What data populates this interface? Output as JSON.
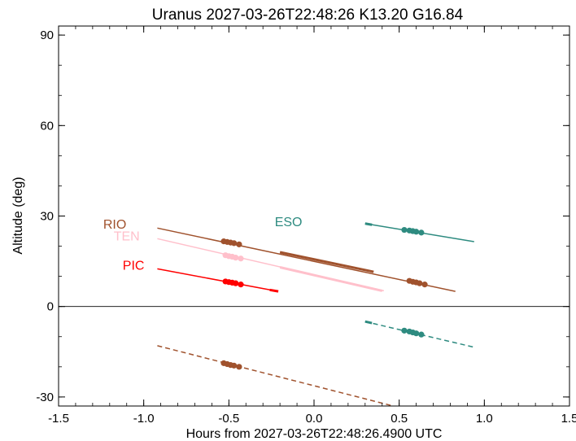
{
  "chart_data": {
    "type": "line",
    "title": "Uranus 2027-03-26T22:48:26  K13.20  G16.84",
    "xlabel": "Hours from 2027-03-26T22:48:26.4900 UTC",
    "ylabel": "Altitude (deg)",
    "xlim": [
      -1.5,
      1.5
    ],
    "ylim": [
      -33,
      93
    ],
    "xticks": [
      -1.5,
      -1.0,
      -0.5,
      0.0,
      0.5,
      1.0,
      1.5
    ],
    "xtick_labels": [
      "-1.5",
      "-1.0",
      "-0.5",
      "0.0",
      "0.5",
      "1.0",
      "1.5"
    ],
    "yticks": [
      -30,
      0,
      30,
      60,
      90
    ],
    "ytick_labels": [
      "-30",
      "0",
      "30",
      "60",
      "90"
    ],
    "zero_line": true,
    "grid": false,
    "series": [
      {
        "name": "RIO",
        "color": "#a0522d",
        "label_pos": [
          -1.17,
          27.5
        ],
        "segments": [
          {
            "x": [
              -0.92,
              0.83
            ],
            "y": [
              26.0,
              5.0
            ],
            "style": "solid",
            "width": 1.5
          },
          {
            "x": [
              -0.2,
              0.35
            ],
            "y": [
              18.0,
              11.5
            ],
            "style": "solid",
            "width": 3
          },
          {
            "x": [
              -0.92,
              0.5
            ],
            "y": [
              -13.0,
              -33.5
            ],
            "style": "dashed",
            "width": 1.5
          }
        ],
        "dots": [
          {
            "x": -0.53,
            "y": 21.6
          },
          {
            "x": -0.51,
            "y": 21.4
          },
          {
            "x": -0.49,
            "y": 21.2
          },
          {
            "x": -0.47,
            "y": 21.0
          },
          {
            "x": -0.44,
            "y": 20.6
          },
          {
            "x": 0.56,
            "y": 8.5
          },
          {
            "x": 0.58,
            "y": 8.2
          },
          {
            "x": 0.6,
            "y": 8.0
          },
          {
            "x": 0.62,
            "y": 7.7
          },
          {
            "x": 0.65,
            "y": 7.3
          },
          {
            "x": -0.53,
            "y": -18.8
          },
          {
            "x": -0.51,
            "y": -19.1
          },
          {
            "x": -0.49,
            "y": -19.4
          },
          {
            "x": -0.47,
            "y": -19.6
          },
          {
            "x": -0.44,
            "y": -20.0
          }
        ]
      },
      {
        "name": "TEN",
        "color": "#ffc0cb",
        "label_pos": [
          -1.1,
          23.5
        ],
        "segments": [
          {
            "x": [
              -0.92,
              0.41
            ],
            "y": [
              22.5,
              5.2
            ],
            "style": "solid",
            "width": 1.5
          },
          {
            "x": -0.2,
            "y": 0
          },
          {
            "x": [
              -0.2,
              0.4
            ],
            "y": [
              13.0,
              5.2
            ],
            "style": "solid",
            "width": 3
          }
        ],
        "dots": [
          {
            "x": -0.52,
            "y": 17.0
          },
          {
            "x": -0.5,
            "y": 16.7
          },
          {
            "x": -0.48,
            "y": 16.5
          },
          {
            "x": -0.46,
            "y": 16.2
          },
          {
            "x": -0.43,
            "y": 15.9
          }
        ]
      },
      {
        "name": "PIC",
        "color": "#ff0000",
        "label_pos": [
          -1.06,
          13.8
        ],
        "segments": [
          {
            "x": [
              -0.92,
              -0.21
            ],
            "y": [
              12.5,
              5.0
            ],
            "style": "solid",
            "width": 1.5
          },
          {
            "x": [
              -0.26,
              -0.21
            ],
            "y": [
              5.5,
              5.0
            ],
            "style": "solid",
            "width": 3
          }
        ],
        "dots": [
          {
            "x": -0.52,
            "y": 8.3
          },
          {
            "x": -0.5,
            "y": 8.1
          },
          {
            "x": -0.48,
            "y": 7.9
          },
          {
            "x": -0.46,
            "y": 7.7
          },
          {
            "x": -0.43,
            "y": 7.3
          }
        ]
      },
      {
        "name": "ESO",
        "color": "#2e8b80",
        "label_pos": [
          -0.15,
          28.2
        ],
        "segments": [
          {
            "x": [
              0.3,
              0.94
            ],
            "y": [
              27.5,
              21.5
            ],
            "style": "solid",
            "width": 1.5
          },
          {
            "x": [
              0.3,
              0.34
            ],
            "y": [
              27.5,
              27.1
            ],
            "style": "solid",
            "width": 3
          },
          {
            "x": [
              0.3,
              0.94
            ],
            "y": [
              -5.0,
              -13.5
            ],
            "style": "dashed",
            "width": 1.5
          },
          {
            "x": [
              0.3,
              0.34
            ],
            "y": [
              -5.0,
              -5.5
            ],
            "style": "solid",
            "width": 3
          }
        ],
        "dots": [
          {
            "x": 0.53,
            "y": 25.4
          },
          {
            "x": 0.56,
            "y": 25.2
          },
          {
            "x": 0.58,
            "y": 25.0
          },
          {
            "x": 0.6,
            "y": 24.8
          },
          {
            "x": 0.63,
            "y": 24.5
          },
          {
            "x": 0.53,
            "y": -8.0
          },
          {
            "x": 0.56,
            "y": -8.3
          },
          {
            "x": 0.58,
            "y": -8.6
          },
          {
            "x": 0.6,
            "y": -8.9
          },
          {
            "x": 0.63,
            "y": -9.3
          }
        ]
      }
    ]
  }
}
